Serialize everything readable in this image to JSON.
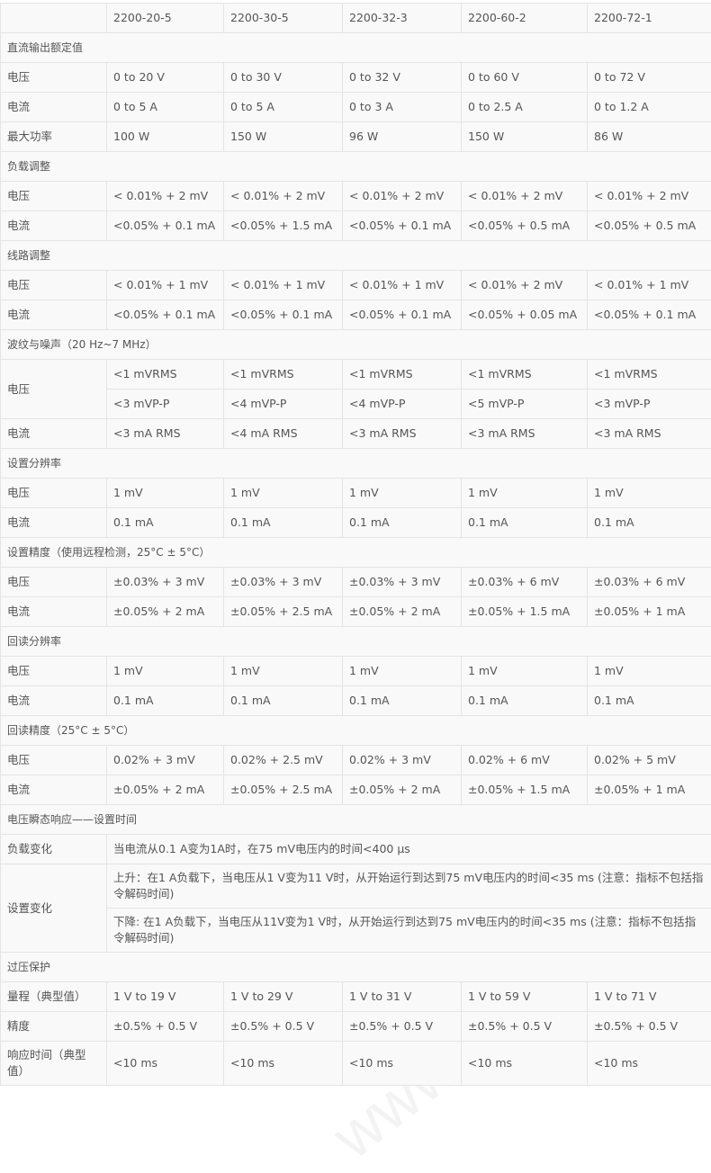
{
  "watermark": "www.ehsy.com",
  "header": [
    "",
    "2200-20-5",
    "2200-30-5",
    "2200-32-3",
    "2200-60-2",
    "2200-72-1"
  ],
  "sections": [
    {
      "title": "直流输出额定值",
      "rows": [
        {
          "label": "电压",
          "values": [
            [
              "0 to 20 V"
            ],
            [
              "0 to 30 V"
            ],
            [
              "0 to 32 V"
            ],
            [
              "0 to 60 V"
            ],
            [
              "0 to 72 V"
            ]
          ]
        },
        {
          "label": "电流",
          "values": [
            [
              "0 to 5 A"
            ],
            [
              "0 to 5 A"
            ],
            [
              "0 to 3 A"
            ],
            [
              "0 to 2.5 A"
            ],
            [
              "0 to 1.2 A"
            ]
          ]
        },
        {
          "label": "最大功率",
          "values": [
            [
              "100 W"
            ],
            [
              "150 W"
            ],
            [
              "96 W"
            ],
            [
              "150 W"
            ],
            [
              "86 W"
            ]
          ]
        }
      ]
    },
    {
      "title": "负载调整",
      "rows": [
        {
          "label": "电压",
          "values": [
            [
              "< 0.01% + 2 mV"
            ],
            [
              "< 0.01% + 2 mV"
            ],
            [
              "< 0.01% + 2 mV"
            ],
            [
              "< 0.01% + 2 mV"
            ],
            [
              "< 0.01% + 2 mV"
            ]
          ]
        },
        {
          "label": "电流",
          "values": [
            [
              "<0.05% + 0.1 mA"
            ],
            [
              "<0.05% + 1.5 mA"
            ],
            [
              "<0.05% + 0.1 mA"
            ],
            [
              "<0.05% + 0.5 mA"
            ],
            [
              "<0.05% + 0.5 mA"
            ]
          ]
        }
      ]
    },
    {
      "title": "线路调整",
      "rows": [
        {
          "label": "电压",
          "values": [
            [
              "< 0.01% + 1 mV"
            ],
            [
              "< 0.01% + 1 mV"
            ],
            [
              "< 0.01% + 1 mV"
            ],
            [
              "< 0.01% + 2 mV"
            ],
            [
              "< 0.01% + 1 mV"
            ]
          ]
        },
        {
          "label": "电流",
          "values": [
            [
              "<0.05% + 0.1 mA"
            ],
            [
              "<0.05% + 0.1 mA"
            ],
            [
              "<0.05% + 0.1 mA"
            ],
            [
              "<0.05% + 0.05 mA"
            ],
            [
              "<0.05% + 0.1 mA"
            ]
          ]
        }
      ]
    },
    {
      "title": "波纹与噪声（20 Hz~7 MHz）",
      "rows": [
        {
          "label": "电压",
          "values": [
            [
              "<1 mVRMS",
              "<3 mVP-P"
            ],
            [
              "<1 mVRMS",
              "<4 mVP-P"
            ],
            [
              "<1 mVRMS",
              "<4 mVP-P"
            ],
            [
              "<1 mVRMS",
              "<5 mVP-P"
            ],
            [
              "<1 mVRMS",
              "<3 mVP-P"
            ]
          ]
        },
        {
          "label": "电流",
          "values": [
            [
              "<3 mA RMS"
            ],
            [
              "<4 mA RMS"
            ],
            [
              "<3 mA RMS"
            ],
            [
              "<3 mA RMS"
            ],
            [
              "<3 mA RMS"
            ]
          ]
        }
      ]
    },
    {
      "title": "设置分辨率",
      "rows": [
        {
          "label": "电压",
          "values": [
            [
              "1 mV"
            ],
            [
              "1 mV"
            ],
            [
              "1 mV"
            ],
            [
              "1 mV"
            ],
            [
              "1 mV"
            ]
          ]
        },
        {
          "label": "电流",
          "values": [
            [
              "0.1 mA"
            ],
            [
              "0.1 mA"
            ],
            [
              "0.1 mA"
            ],
            [
              "0.1 mA"
            ],
            [
              "0.1 mA"
            ]
          ]
        }
      ]
    },
    {
      "title": "设置精度（使用远程检测，25°C ± 5°C）",
      "rows": [
        {
          "label": "电压",
          "values": [
            [
              "±0.03% + 3 mV"
            ],
            [
              "±0.03% + 3 mV"
            ],
            [
              "±0.03% + 3 mV"
            ],
            [
              "±0.03% + 6 mV"
            ],
            [
              "±0.03% + 6 mV"
            ]
          ]
        },
        {
          "label": "电流",
          "values": [
            [
              "±0.05% + 2 mA"
            ],
            [
              "±0.05% + 2.5 mA"
            ],
            [
              "±0.05% + 2 mA"
            ],
            [
              "±0.05% + 1.5 mA"
            ],
            [
              "±0.05% + 1 mA"
            ]
          ]
        }
      ]
    },
    {
      "title": "回读分辨率",
      "rows": [
        {
          "label": "电压",
          "values": [
            [
              "1 mV"
            ],
            [
              "1 mV"
            ],
            [
              "1 mV"
            ],
            [
              "1 mV"
            ],
            [
              "1 mV"
            ]
          ]
        },
        {
          "label": "电流",
          "values": [
            [
              "0.1 mA"
            ],
            [
              "0.1 mA"
            ],
            [
              "0.1 mA"
            ],
            [
              "0.1 mA"
            ],
            [
              "0.1 mA"
            ]
          ]
        }
      ]
    },
    {
      "title": "回读精度（25°C ± 5°C）",
      "rows": [
        {
          "label": "电压",
          "values": [
            [
              "0.02% + 3 mV"
            ],
            [
              "0.02% + 2.5 mV"
            ],
            [
              "0.02% + 3 mV"
            ],
            [
              "0.02% + 6 mV"
            ],
            [
              "0.02% + 5 mV"
            ]
          ]
        },
        {
          "label": "电流",
          "values": [
            [
              "±0.05% + 2 mA"
            ],
            [
              "±0.05% + 2.5 mA"
            ],
            [
              "±0.05% + 2 mA"
            ],
            [
              "±0.05% + 1.5 mA"
            ],
            [
              "±0.05% + 1 mA"
            ]
          ]
        }
      ]
    },
    {
      "title": "电压瞬态响应——设置时间",
      "rows": [
        {
          "label": "负载变化",
          "span": [
            "当电流从0.1 A变为1A时，在75 mV电压内的时间<400 μs"
          ]
        },
        {
          "label": "设置变化",
          "span": [
            "上升：在1 A负载下，当电压从1 V变为11 V时，从开始运行到达到75 mV电压内的时间<35 ms (注意：指标不包括指令解码时间)",
            "下降: 在1 A负载下，当电压从11V变为1 V时，从开始运行到达到75 mV电压内的时间<35 ms (注意：指标不包括指令解码时间)"
          ]
        }
      ]
    },
    {
      "title": "过压保护",
      "rows": [
        {
          "label": "量程（典型值）",
          "values": [
            [
              "1 V to 19 V"
            ],
            [
              "1 V to 29 V"
            ],
            [
              "1 V to 31 V"
            ],
            [
              "1 V to 59 V"
            ],
            [
              "1 V to 71 V"
            ]
          ]
        },
        {
          "label": "精度",
          "values": [
            [
              "±0.5% + 0.5 V"
            ],
            [
              "±0.5% + 0.5 V"
            ],
            [
              "±0.5% + 0.5 V"
            ],
            [
              "±0.5% + 0.5 V"
            ],
            [
              "±0.5% + 0.5 V"
            ]
          ]
        },
        {
          "label": "响应时间（典型值）",
          "tall": true,
          "values": [
            [
              "<10 ms"
            ],
            [
              "<10 ms"
            ],
            [
              "<10 ms"
            ],
            [
              "<10 ms"
            ],
            [
              "<10 ms"
            ]
          ]
        }
      ]
    }
  ]
}
